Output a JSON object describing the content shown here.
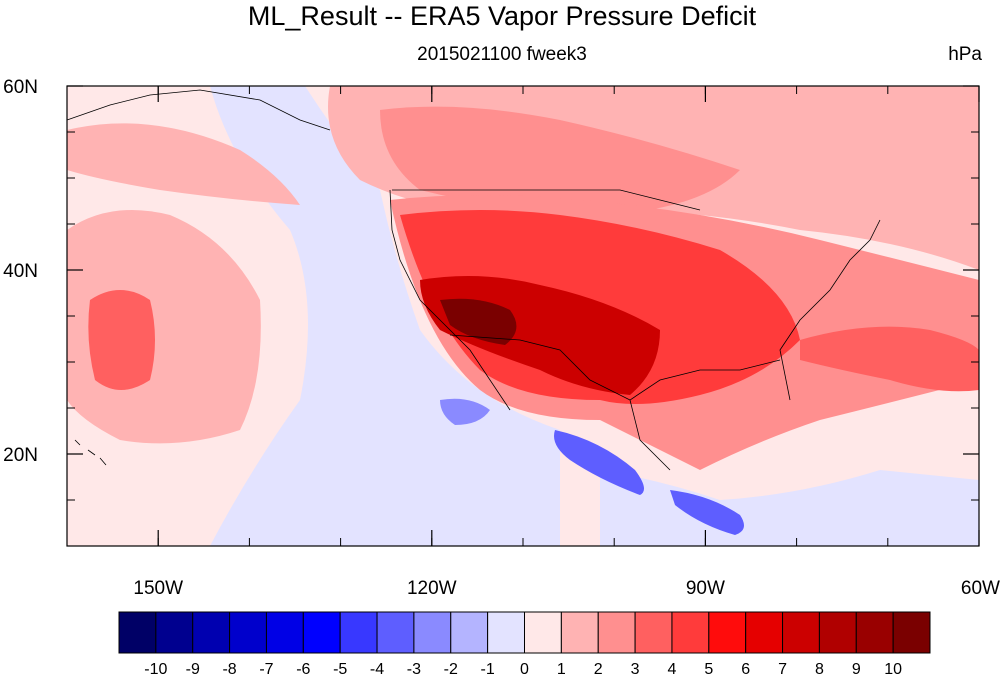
{
  "title": "ML_Result -- ERA5 Vapor Pressure Deficit",
  "subtitle_center": "2015021100 fweek3",
  "subtitle_right": "hPa",
  "map": {
    "lon_range": [
      -160,
      -60
    ],
    "lat_range": [
      10,
      60
    ],
    "lon_ticks": [
      {
        "value": -150,
        "label": "150W"
      },
      {
        "value": -120,
        "label": "120W"
      },
      {
        "value": -90,
        "label": "90W"
      },
      {
        "value": -60,
        "label": "60W"
      }
    ],
    "lat_ticks": [
      {
        "value": 60,
        "label": "60N"
      },
      {
        "value": 40,
        "label": "40N"
      },
      {
        "value": 20,
        "label": "20N"
      }
    ]
  },
  "colorbar": {
    "labels": [
      "-10",
      "-9",
      "-8",
      "-7",
      "-6",
      "-5",
      "-4",
      "-3",
      "-2",
      "-1",
      "0",
      "1",
      "2",
      "3",
      "4",
      "5",
      "6",
      "7",
      "8",
      "9",
      "10"
    ],
    "colors": [
      "#000066",
      "#00008f",
      "#0000b0",
      "#0000cc",
      "#0000e6",
      "#0000ff",
      "#3838ff",
      "#5e5eff",
      "#8a8aff",
      "#b4b4ff",
      "#e3e3ff",
      "#ffe8e8",
      "#ffb3b3",
      "#ff8f8f",
      "#ff6060",
      "#ff3b3b",
      "#ff0c0c",
      "#e50000",
      "#cc0000",
      "#b00000",
      "#990000",
      "#7a0000"
    ]
  }
}
